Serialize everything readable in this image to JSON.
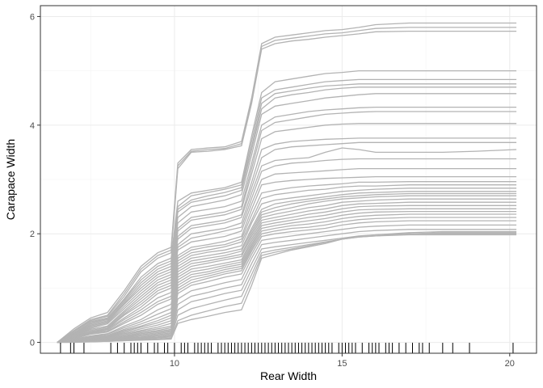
{
  "chart_data": {
    "type": "line",
    "title": "",
    "xlabel": "Rear Width",
    "ylabel": "Carapace Width",
    "xlim": [
      6.0,
      20.8
    ],
    "ylim": [
      -0.2,
      6.2
    ],
    "x_ticks": [
      10,
      15,
      20
    ],
    "y_ticks": [
      0,
      2,
      4,
      6
    ],
    "grid": true,
    "legend": "none",
    "line_color": "#b3b3b3",
    "rug_color": "#000000",
    "x": [
      6.5,
      7.0,
      7.5,
      8.0,
      8.5,
      9.0,
      9.5,
      9.9,
      10.1,
      10.5,
      11.0,
      11.5,
      12.0,
      12.3,
      12.6,
      13.0,
      13.5,
      14.0,
      14.5,
      15.0,
      15.5,
      16.0,
      17.0,
      18.0,
      19.0,
      20.2
    ],
    "series": [
      {
        "values": [
          0,
          0.25,
          0.45,
          0.55,
          0.95,
          1.4,
          1.65,
          1.75,
          3.3,
          3.55,
          3.58,
          3.6,
          3.7,
          4.5,
          5.5,
          5.62,
          5.66,
          5.7,
          5.74,
          5.76,
          5.8,
          5.85,
          5.88,
          5.88,
          5.88,
          5.88
        ]
      },
      {
        "values": [
          0,
          0.22,
          0.42,
          0.5,
          0.9,
          1.35,
          1.6,
          1.7,
          3.25,
          3.52,
          3.55,
          3.57,
          3.66,
          4.45,
          5.45,
          5.56,
          5.6,
          5.64,
          5.68,
          5.7,
          5.74,
          5.78,
          5.8,
          5.8,
          5.8,
          5.8
        ]
      },
      {
        "values": [
          0,
          0.2,
          0.4,
          0.48,
          0.85,
          1.3,
          1.55,
          1.65,
          3.2,
          3.5,
          3.52,
          3.55,
          3.62,
          4.4,
          5.4,
          5.5,
          5.55,
          5.58,
          5.62,
          5.65,
          5.68,
          5.72,
          5.73,
          5.73,
          5.73,
          5.73
        ]
      },
      {
        "values": [
          0,
          0.2,
          0.38,
          0.45,
          0.8,
          1.2,
          1.45,
          1.55,
          2.6,
          2.75,
          2.8,
          2.85,
          2.95,
          3.8,
          4.6,
          4.8,
          4.85,
          4.9,
          4.95,
          4.97,
          5.0,
          5.0,
          5.0,
          5.0,
          5.0,
          5.0
        ]
      },
      {
        "values": [
          0,
          0.18,
          0.36,
          0.44,
          0.78,
          1.15,
          1.4,
          1.5,
          2.5,
          2.7,
          2.76,
          2.82,
          2.9,
          3.7,
          4.5,
          4.65,
          4.7,
          4.75,
          4.8,
          4.82,
          4.84,
          4.84,
          4.84,
          4.84,
          4.84,
          4.84
        ]
      },
      {
        "values": [
          0,
          0.17,
          0.34,
          0.42,
          0.75,
          1.1,
          1.35,
          1.45,
          2.45,
          2.62,
          2.7,
          2.76,
          2.85,
          3.6,
          4.4,
          4.58,
          4.63,
          4.68,
          4.72,
          4.74,
          4.76,
          4.76,
          4.76,
          4.76,
          4.76,
          4.76
        ]
      },
      {
        "values": [
          0,
          0.16,
          0.32,
          0.4,
          0.72,
          1.05,
          1.3,
          1.4,
          2.4,
          2.58,
          2.64,
          2.7,
          2.8,
          3.55,
          4.3,
          4.5,
          4.56,
          4.6,
          4.65,
          4.68,
          4.7,
          4.7,
          4.7,
          4.7,
          4.7,
          4.7
        ]
      },
      {
        "values": [
          0,
          0.15,
          0.3,
          0.38,
          0.7,
          1.0,
          1.25,
          1.35,
          2.3,
          2.5,
          2.56,
          2.62,
          2.72,
          3.45,
          4.2,
          4.35,
          4.4,
          4.45,
          4.5,
          4.53,
          4.56,
          4.58,
          4.58,
          4.58,
          4.58,
          4.58
        ]
      },
      {
        "values": [
          0,
          0.14,
          0.28,
          0.36,
          0.66,
          0.95,
          1.2,
          1.3,
          2.2,
          2.4,
          2.45,
          2.5,
          2.6,
          3.3,
          4.0,
          4.15,
          4.2,
          4.25,
          4.28,
          4.3,
          4.32,
          4.33,
          4.33,
          4.33,
          4.33,
          4.33
        ]
      },
      {
        "values": [
          0,
          0.13,
          0.26,
          0.34,
          0.62,
          0.9,
          1.15,
          1.25,
          2.1,
          2.3,
          2.35,
          2.4,
          2.5,
          3.2,
          3.9,
          4.05,
          4.1,
          4.15,
          4.2,
          4.22,
          4.24,
          4.25,
          4.25,
          4.25,
          4.25,
          4.25
        ]
      },
      {
        "values": [
          0,
          0.12,
          0.24,
          0.3,
          0.58,
          0.85,
          1.1,
          1.2,
          2.05,
          2.25,
          2.3,
          2.35,
          2.45,
          3.1,
          3.75,
          3.88,
          3.92,
          3.96,
          4.0,
          4.02,
          4.03,
          4.03,
          4.03,
          4.03,
          4.03,
          4.03
        ]
      },
      {
        "values": [
          0,
          0.11,
          0.22,
          0.28,
          0.55,
          0.8,
          1.05,
          1.15,
          1.95,
          2.15,
          2.2,
          2.25,
          2.35,
          2.95,
          3.55,
          3.65,
          3.7,
          3.72,
          3.74,
          3.75,
          3.76,
          3.76,
          3.76,
          3.76,
          3.76,
          3.76
        ]
      },
      {
        "values": [
          0,
          0.1,
          0.2,
          0.26,
          0.52,
          0.75,
          1.0,
          1.1,
          1.9,
          2.1,
          2.15,
          2.2,
          2.3,
          2.85,
          3.4,
          3.55,
          3.6,
          3.62,
          3.64,
          3.66,
          3.68,
          3.68,
          3.68,
          3.68,
          3.68,
          3.68
        ]
      },
      {
        "values": [
          0,
          0.1,
          0.19,
          0.25,
          0.5,
          0.7,
          0.95,
          1.05,
          1.8,
          2.0,
          2.05,
          2.1,
          2.2,
          2.75,
          3.25,
          3.35,
          3.38,
          3.4,
          3.5,
          3.58,
          3.55,
          3.5,
          3.5,
          3.5,
          3.52,
          3.55
        ]
      },
      {
        "values": [
          0,
          0.09,
          0.18,
          0.24,
          0.45,
          0.65,
          0.9,
          1.0,
          1.75,
          1.92,
          1.98,
          2.05,
          2.12,
          2.65,
          3.15,
          3.25,
          3.3,
          3.32,
          3.35,
          3.37,
          3.38,
          3.38,
          3.38,
          3.38,
          3.38,
          3.38
        ]
      },
      {
        "values": [
          0,
          0.08,
          0.17,
          0.22,
          0.42,
          0.6,
          0.82,
          0.92,
          1.7,
          1.85,
          1.9,
          1.95,
          2.05,
          2.55,
          3.0,
          3.1,
          3.12,
          3.14,
          3.16,
          3.18,
          3.2,
          3.2,
          3.2,
          3.2,
          3.2,
          3.2
        ]
      },
      {
        "values": [
          0,
          0.08,
          0.16,
          0.2,
          0.38,
          0.55,
          0.75,
          0.85,
          1.6,
          1.75,
          1.8,
          1.86,
          1.95,
          2.45,
          2.9,
          2.95,
          2.98,
          3.0,
          3.02,
          3.03,
          3.04,
          3.05,
          3.05,
          3.05,
          3.05,
          3.05
        ]
      },
      {
        "values": [
          0,
          0.07,
          0.15,
          0.19,
          0.35,
          0.5,
          0.7,
          0.8,
          1.55,
          1.7,
          1.76,
          1.8,
          1.9,
          2.35,
          2.75,
          2.8,
          2.85,
          2.88,
          2.9,
          2.92,
          2.95,
          2.95,
          2.96,
          2.96,
          2.96,
          2.96
        ]
      },
      {
        "values": [
          0,
          0.06,
          0.12,
          0.16,
          0.3,
          0.42,
          0.6,
          0.7,
          1.5,
          1.65,
          1.7,
          1.76,
          1.85,
          2.25,
          2.65,
          2.72,
          2.76,
          2.8,
          2.82,
          2.86,
          2.88,
          2.88,
          2.9,
          2.9,
          2.9,
          2.9
        ]
      },
      {
        "values": [
          0,
          0.06,
          0.11,
          0.15,
          0.27,
          0.38,
          0.52,
          0.62,
          1.45,
          1.6,
          1.66,
          1.7,
          1.78,
          2.2,
          2.55,
          2.62,
          2.66,
          2.7,
          2.74,
          2.78,
          2.8,
          2.82,
          2.84,
          2.84,
          2.84,
          2.84
        ]
      },
      {
        "values": [
          0,
          0.05,
          0.1,
          0.13,
          0.24,
          0.34,
          0.45,
          0.55,
          1.4,
          1.55,
          1.6,
          1.65,
          1.72,
          2.1,
          2.45,
          2.55,
          2.6,
          2.64,
          2.68,
          2.72,
          2.75,
          2.76,
          2.78,
          2.78,
          2.78,
          2.78
        ]
      },
      {
        "values": [
          0,
          0.05,
          0.09,
          0.12,
          0.22,
          0.3,
          0.4,
          0.5,
          1.35,
          1.5,
          1.55,
          1.6,
          1.68,
          2.05,
          2.4,
          2.48,
          2.55,
          2.6,
          2.64,
          2.68,
          2.7,
          2.72,
          2.74,
          2.74,
          2.74,
          2.74
        ]
      },
      {
        "values": [
          0,
          0.04,
          0.08,
          0.11,
          0.2,
          0.28,
          0.36,
          0.45,
          1.3,
          1.45,
          1.5,
          1.56,
          1.62,
          2.0,
          2.35,
          2.42,
          2.48,
          2.55,
          2.6,
          2.64,
          2.66,
          2.68,
          2.7,
          2.7,
          2.7,
          2.7
        ]
      },
      {
        "values": [
          0,
          0.04,
          0.07,
          0.1,
          0.18,
          0.25,
          0.32,
          0.4,
          1.25,
          1.4,
          1.46,
          1.52,
          1.58,
          1.95,
          2.3,
          2.36,
          2.42,
          2.48,
          2.52,
          2.58,
          2.6,
          2.62,
          2.64,
          2.64,
          2.64,
          2.64
        ]
      },
      {
        "values": [
          0,
          0.03,
          0.06,
          0.09,
          0.16,
          0.22,
          0.28,
          0.35,
          1.2,
          1.35,
          1.4,
          1.46,
          1.52,
          1.9,
          2.25,
          2.3,
          2.36,
          2.42,
          2.46,
          2.52,
          2.55,
          2.56,
          2.58,
          2.58,
          2.58,
          2.58
        ]
      },
      {
        "values": [
          0,
          0.03,
          0.06,
          0.08,
          0.14,
          0.2,
          0.25,
          0.3,
          1.15,
          1.3,
          1.35,
          1.42,
          1.48,
          1.85,
          2.2,
          2.25,
          2.3,
          2.36,
          2.4,
          2.46,
          2.5,
          2.51,
          2.52,
          2.52,
          2.52,
          2.52
        ]
      },
      {
        "values": [
          0,
          0.03,
          0.05,
          0.07,
          0.12,
          0.18,
          0.22,
          0.27,
          1.1,
          1.25,
          1.3,
          1.38,
          1.44,
          1.8,
          2.15,
          2.2,
          2.25,
          2.3,
          2.34,
          2.4,
          2.44,
          2.45,
          2.46,
          2.46,
          2.46,
          2.46
        ]
      },
      {
        "values": [
          0,
          0.02,
          0.05,
          0.06,
          0.11,
          0.16,
          0.2,
          0.24,
          1.05,
          1.2,
          1.26,
          1.34,
          1.4,
          1.76,
          2.1,
          2.15,
          2.2,
          2.24,
          2.28,
          2.34,
          2.38,
          2.4,
          2.41,
          2.41,
          2.41,
          2.41
        ]
      },
      {
        "values": [
          0,
          0.02,
          0.04,
          0.06,
          0.1,
          0.14,
          0.18,
          0.22,
          1.0,
          1.15,
          1.22,
          1.3,
          1.36,
          1.72,
          2.05,
          2.1,
          2.15,
          2.18,
          2.22,
          2.28,
          2.32,
          2.34,
          2.36,
          2.36,
          2.36,
          2.36
        ]
      },
      {
        "values": [
          0,
          0.02,
          0.04,
          0.05,
          0.09,
          0.12,
          0.16,
          0.2,
          0.95,
          1.1,
          1.18,
          1.26,
          1.32,
          1.68,
          2.0,
          2.05,
          2.1,
          2.12,
          2.16,
          2.22,
          2.26,
          2.28,
          2.3,
          2.3,
          2.3,
          2.3
        ]
      },
      {
        "values": [
          0,
          0.02,
          0.03,
          0.05,
          0.08,
          0.1,
          0.14,
          0.18,
          0.9,
          1.05,
          1.12,
          1.2,
          1.26,
          1.62,
          1.95,
          2.0,
          2.04,
          2.07,
          2.1,
          2.16,
          2.2,
          2.22,
          2.24,
          2.24,
          2.24,
          2.24
        ]
      },
      {
        "values": [
          0,
          0.01,
          0.03,
          0.04,
          0.07,
          0.09,
          0.12,
          0.16,
          0.8,
          0.95,
          1.02,
          1.1,
          1.16,
          1.55,
          1.88,
          1.92,
          1.96,
          2.0,
          2.04,
          2.08,
          2.12,
          2.14,
          2.16,
          2.16,
          2.16,
          2.16
        ]
      },
      {
        "values": [
          0,
          0.01,
          0.02,
          0.03,
          0.06,
          0.08,
          0.1,
          0.14,
          0.7,
          0.85,
          0.92,
          1.0,
          1.06,
          1.45,
          1.8,
          1.84,
          1.88,
          1.92,
          1.96,
          2.0,
          2.04,
          2.06,
          2.08,
          2.08,
          2.08,
          2.08
        ]
      },
      {
        "values": [
          0,
          0.01,
          0.02,
          0.03,
          0.05,
          0.07,
          0.09,
          0.12,
          0.6,
          0.75,
          0.82,
          0.9,
          0.96,
          1.35,
          1.72,
          1.76,
          1.8,
          1.84,
          1.88,
          1.92,
          1.96,
          1.98,
          2.0,
          2.0,
          2.0,
          2.0
        ]
      },
      {
        "values": [
          0,
          0.01,
          0.02,
          0.02,
          0.04,
          0.06,
          0.08,
          0.1,
          0.5,
          0.62,
          0.7,
          0.78,
          0.85,
          1.25,
          1.65,
          1.7,
          1.75,
          1.8,
          1.85,
          1.9,
          1.94,
          1.96,
          1.98,
          1.98,
          1.98,
          1.98
        ]
      },
      {
        "values": [
          0,
          0.01,
          0.01,
          0.02,
          0.03,
          0.05,
          0.06,
          0.08,
          0.4,
          0.5,
          0.58,
          0.66,
          0.72,
          1.15,
          1.6,
          1.66,
          1.72,
          1.78,
          1.84,
          1.9,
          1.94,
          1.96,
          2.0,
          2.02,
          2.02,
          2.02
        ]
      },
      {
        "values": [
          0,
          0.0,
          0.01,
          0.02,
          0.03,
          0.04,
          0.05,
          0.06,
          0.35,
          0.42,
          0.48,
          0.55,
          0.6,
          1.05,
          1.55,
          1.62,
          1.7,
          1.76,
          1.82,
          1.9,
          1.95,
          1.98,
          2.02,
          2.04,
          2.04,
          2.04
        ]
      }
    ],
    "rug": [
      6.6,
      6.9,
      7.3,
      8.3,
      8.5,
      8.7,
      8.9,
      9.0,
      9.4,
      9.7,
      10.0,
      10.2,
      10.4,
      10.6,
      10.8,
      10.9,
      11.1,
      11.3,
      11.5,
      11.6,
      11.8,
      11.9,
      12.0,
      12.1,
      12.3,
      12.4,
      12.5,
      12.6,
      12.7,
      12.9,
      13.0,
      13.1,
      13.3,
      13.4,
      13.5,
      13.6,
      13.7,
      13.8,
      13.9,
      14.0,
      14.1,
      14.2,
      14.3,
      14.4,
      14.5,
      14.7,
      14.9,
      15.0,
      15.2,
      15.4,
      15.6,
      15.8,
      16.0,
      16.1,
      16.3,
      16.5,
      16.7,
      16.9,
      17.1,
      17.3,
      17.6,
      18.0,
      18.3,
      18.8,
      20.1,
      7.0,
      8.1,
      8.8,
      9.2,
      9.5,
      9.8,
      10.3,
      10.7,
      11.0,
      11.4,
      11.7,
      12.2,
      12.8,
      13.2,
      14.6,
      15.1,
      15.3,
      15.9,
      16.4,
      17.4
    ]
  }
}
